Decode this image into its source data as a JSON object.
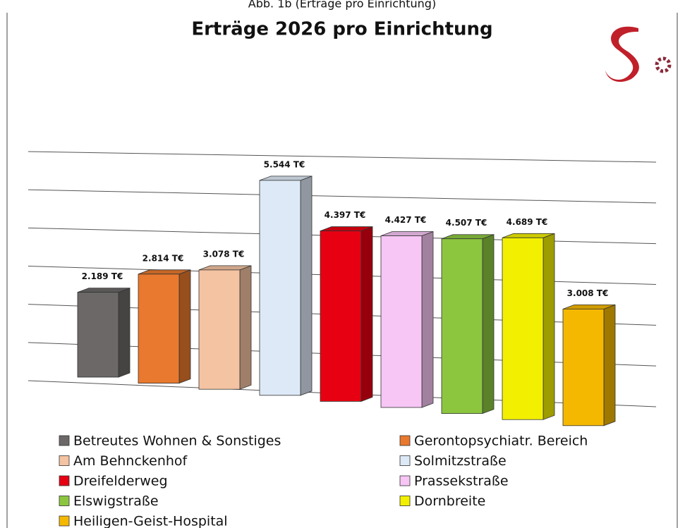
{
  "caption": "Abb. 1b (Erträge pro Einrichtung)",
  "chart_data": {
    "type": "bar3d",
    "title": "Erträge 2026 pro Einrichtung",
    "categories": [
      "Betreutes Wohnen & Sonstiges",
      "Gerontopsychiatr. Bereich",
      "Am Behnckenhof",
      "Solmitzstraße",
      "Dreifelderweg",
      "Prassekstraße",
      "Elswigstraße",
      "Dornbreite",
      "Heiligen-Geist-Hospital"
    ],
    "values": [
      2189,
      2814,
      3078,
      5544,
      4397,
      4427,
      4507,
      4689,
      3008
    ],
    "value_labels": [
      "2.189 T€",
      "2.814 T€",
      "3.078 T€",
      "5.544 T€",
      "4.397 T€",
      "4.427 T€",
      "4.507 T€",
      "4.689 T€",
      "3.008 T€"
    ],
    "colors": [
      "#6b6867",
      "#e8792e",
      "#f4c3a2",
      "#dde9f6",
      "#e60012",
      "#f7c6f5",
      "#8cc63f",
      "#f2f000",
      "#f5b800"
    ],
    "ylim": [
      0,
      6000
    ],
    "yticks": [
      0,
      1000,
      2000,
      3000,
      4000,
      5000,
      6000
    ],
    "grid": true
  }
}
